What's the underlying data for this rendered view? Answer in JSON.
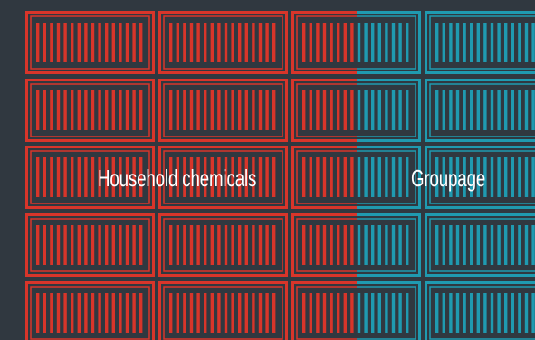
{
  "colors": {
    "background": "#303840",
    "household_chemicals": "#d8352a",
    "groupage": "#1f9ab0",
    "label_text": "#ffffff"
  },
  "categories": [
    {
      "key": "household",
      "label": "Household chemicals",
      "color": "#d8352a"
    },
    {
      "key": "groupage",
      "label": "Groupage",
      "color": "#1f9ab0"
    }
  ]
}
